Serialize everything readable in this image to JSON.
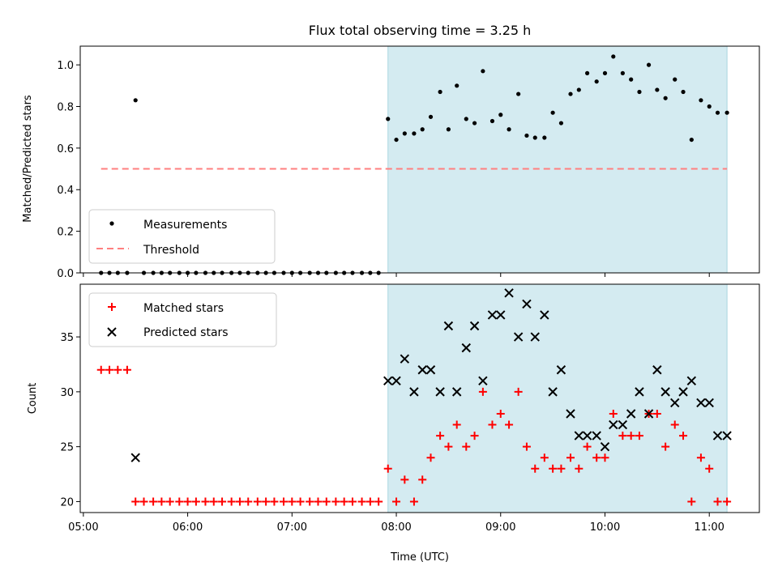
{
  "chart_data": {
    "title": "Flux total observing time = 3.25 h",
    "xlabel": "Time (UTC)",
    "x_unit": "hours UTC",
    "xlim": [
      4.97,
      11.48
    ],
    "x_ticks": [
      {
        "value": 5,
        "label": "05:00"
      },
      {
        "value": 6,
        "label": "06:00"
      },
      {
        "value": 7,
        "label": "07:00"
      },
      {
        "value": 8,
        "label": "08:00"
      },
      {
        "value": 9,
        "label": "09:00"
      },
      {
        "value": 10,
        "label": "10:00"
      },
      {
        "value": 11,
        "label": "11:00"
      }
    ],
    "highlight_span": [
      7.92,
      11.17
    ],
    "panels": [
      {
        "type": "scatter",
        "ylabel": "Matched/Predicted stars",
        "ylim": [
          0,
          1.09
        ],
        "y_ticks": [
          0.0,
          0.2,
          0.4,
          0.6,
          0.8,
          1.0
        ],
        "y_tick_labels": [
          "0.0",
          "0.2",
          "0.4",
          "0.6",
          "0.8",
          "1.0"
        ],
        "legend": [
          "Measurements",
          "Threshold"
        ],
        "threshold": {
          "name": "Threshold",
          "value": 0.5,
          "x_range": [
            5.17,
            11.17
          ]
        },
        "series": [
          {
            "name": "Measurements",
            "x": [
              5.17,
              5.25,
              5.33,
              5.42,
              5.5,
              5.58,
              5.67,
              5.75,
              5.83,
              5.92,
              6.0,
              6.08,
              6.17,
              6.25,
              6.33,
              6.42,
              6.5,
              6.58,
              6.67,
              6.75,
              6.83,
              6.92,
              7.0,
              7.08,
              7.17,
              7.25,
              7.33,
              7.42,
              7.5,
              7.58,
              7.67,
              7.75,
              7.83,
              7.92,
              8.0,
              8.08,
              8.17,
              8.25,
              8.33,
              8.42,
              8.5,
              8.58,
              8.67,
              8.75,
              8.83,
              8.92,
              9.0,
              9.08,
              9.17,
              9.25,
              9.33,
              9.42,
              9.5,
              9.58,
              9.67,
              9.75,
              9.83,
              9.92,
              10.0,
              10.08,
              10.17,
              10.25,
              10.33,
              10.42,
              10.5,
              10.58,
              10.67,
              10.75,
              10.83,
              10.92,
              11.0,
              11.08,
              11.17
            ],
            "y": [
              0.0,
              0.0,
              0.0,
              0.0,
              0.83,
              0.0,
              0.0,
              0.0,
              0.0,
              0.0,
              0.0,
              0.0,
              0.0,
              0.0,
              0.0,
              0.0,
              0.0,
              0.0,
              0.0,
              0.0,
              0.0,
              0.0,
              0.0,
              0.0,
              0.0,
              0.0,
              0.0,
              0.0,
              0.0,
              0.0,
              0.0,
              0.0,
              0.0,
              0.74,
              0.64,
              0.67,
              0.67,
              0.69,
              0.75,
              0.87,
              0.69,
              0.9,
              0.74,
              0.72,
              0.97,
              0.73,
              0.76,
              0.69,
              0.86,
              0.66,
              0.65,
              0.65,
              0.77,
              0.72,
              0.86,
              0.88,
              0.96,
              0.92,
              0.96,
              1.04,
              0.96,
              0.93,
              0.87,
              1.0,
              0.88,
              0.84,
              0.93,
              0.87,
              0.64,
              0.83,
              0.8,
              0.77,
              0.77
            ]
          }
        ]
      },
      {
        "type": "scatter",
        "ylabel": "Count",
        "ylim": [
          19.0,
          39.8
        ],
        "y_ticks": [
          20,
          25,
          30,
          35
        ],
        "y_tick_labels": [
          "20",
          "25",
          "30",
          "35"
        ],
        "legend": [
          "Matched stars",
          "Predicted stars"
        ],
        "series": [
          {
            "name": "Matched stars",
            "color": "#ff0000",
            "x": [
              5.17,
              5.25,
              5.33,
              5.42,
              5.5,
              5.58,
              5.67,
              5.75,
              5.83,
              5.92,
              6.0,
              6.08,
              6.17,
              6.25,
              6.33,
              6.42,
              6.5,
              6.58,
              6.67,
              6.75,
              6.83,
              6.92,
              7.0,
              7.08,
              7.17,
              7.25,
              7.33,
              7.42,
              7.5,
              7.58,
              7.67,
              7.75,
              7.83,
              7.92,
              8.0,
              8.08,
              8.17,
              8.25,
              8.33,
              8.42,
              8.5,
              8.58,
              8.67,
              8.75,
              8.83,
              8.92,
              9.0,
              9.08,
              9.17,
              9.25,
              9.33,
              9.42,
              9.5,
              9.58,
              9.67,
              9.75,
              9.83,
              9.92,
              10.0,
              10.08,
              10.17,
              10.25,
              10.33,
              10.42,
              10.5,
              10.58,
              10.67,
              10.75,
              10.83,
              10.92,
              11.0,
              11.08,
              11.17
            ],
            "y": [
              32,
              32,
              32,
              32,
              20,
              20,
              20,
              20,
              20,
              20,
              20,
              20,
              20,
              20,
              20,
              20,
              20,
              20,
              20,
              20,
              20,
              20,
              20,
              20,
              20,
              20,
              20,
              20,
              20,
              20,
              20,
              20,
              20,
              23,
              20,
              22,
              20,
              22,
              24,
              26,
              25,
              27,
              25,
              26,
              30,
              27,
              28,
              27,
              30,
              25,
              23,
              24,
              23,
              23,
              24,
              23,
              25,
              24,
              24,
              28,
              26,
              26,
              26,
              28,
              28,
              25,
              27,
              26,
              20,
              24,
              23,
              20,
              20
            ]
          },
          {
            "name": "Predicted stars",
            "color": "#000000",
            "x": [
              5.5,
              7.92,
              8.0,
              8.08,
              8.17,
              8.25,
              8.33,
              8.42,
              8.5,
              8.58,
              8.67,
              8.75,
              8.83,
              8.92,
              9.0,
              9.08,
              9.17,
              9.25,
              9.33,
              9.42,
              9.5,
              9.58,
              9.67,
              9.75,
              9.83,
              9.92,
              10.0,
              10.08,
              10.17,
              10.25,
              10.33,
              10.42,
              10.5,
              10.58,
              10.67,
              10.75,
              10.83,
              10.92,
              11.0,
              11.08,
              11.17
            ],
            "y": [
              24,
              31,
              31,
              33,
              30,
              32,
              32,
              30,
              36,
              30,
              34,
              36,
              31,
              37,
              37,
              39,
              35,
              38,
              35,
              37,
              30,
              32,
              28,
              26,
              26,
              26,
              25,
              27,
              27,
              28,
              30,
              28,
              32,
              30,
              29,
              30,
              31,
              29,
              29,
              26,
              26
            ]
          }
        ]
      }
    ]
  },
  "colors": {
    "highlight": "#d4ebf1",
    "highlight_edge": "#a9d6e0",
    "threshold": "#ff7f7f",
    "matched": "#ff0000",
    "predicted": "#000000",
    "measurement": "#000000"
  }
}
